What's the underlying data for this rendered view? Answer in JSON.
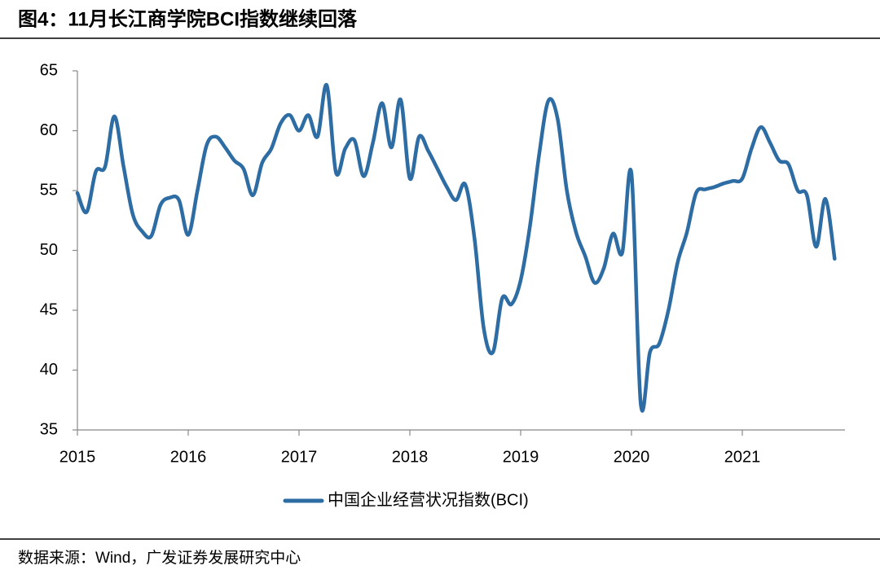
{
  "title": "图4：11月长江商学院BCI指数继续回落",
  "source": "数据来源：Wind，广发证券发展研究中心",
  "chart_data": {
    "type": "line",
    "categories": [
      "2015",
      null,
      null,
      null,
      null,
      null,
      null,
      null,
      null,
      null,
      null,
      null,
      "2016",
      null,
      null,
      null,
      null,
      null,
      null,
      null,
      null,
      null,
      null,
      null,
      "2017",
      null,
      null,
      null,
      null,
      null,
      null,
      null,
      null,
      null,
      null,
      null,
      "2018",
      null,
      null,
      null,
      null,
      null,
      null,
      null,
      null,
      null,
      null,
      null,
      "2019",
      null,
      null,
      null,
      null,
      null,
      null,
      null,
      null,
      null,
      null,
      null,
      "2020",
      null,
      null,
      null,
      null,
      null,
      null,
      null,
      null,
      null,
      null,
      null,
      "2021",
      null,
      null,
      null,
      null,
      null,
      null,
      null,
      null,
      null,
      null
    ],
    "series": [
      {
        "name": "中国企业经营状况指数(BCI)",
        "color": "#2e6da4",
        "values": [
          54.8,
          53.2,
          56.6,
          57,
          61.2,
          57,
          53,
          51.6,
          51.2,
          53.8,
          54.4,
          54.2,
          51.3,
          55,
          58.8,
          59.5,
          58.6,
          57.5,
          56.8,
          54.6,
          57.3,
          58.5,
          60.6,
          61.3,
          60,
          61.3,
          59.5,
          63.8,
          56.5,
          58.5,
          59.2,
          56.2,
          59,
          62.3,
          58.6,
          62.6,
          56,
          59.5,
          58.3,
          56.8,
          55.3,
          54.2,
          55.5,
          51,
          43.5,
          41.5,
          46,
          45.5,
          47.5,
          52,
          58,
          62.5,
          61,
          55,
          51.5,
          49.5,
          47.3,
          48.5,
          51.4,
          49.8,
          56.4,
          37.2,
          41.5,
          42.2,
          45,
          49,
          51.5,
          54.8,
          55.1,
          55.3,
          55.6,
          55.8,
          56,
          58.5,
          60.3,
          59,
          57.5,
          57.2,
          55,
          54.6,
          50.3,
          54.3,
          49.3
        ]
      }
    ],
    "ylim": [
      35,
      65
    ],
    "yticks": [
      35,
      40,
      45,
      50,
      55,
      60,
      65
    ],
    "grid": false,
    "legend": "bottom"
  }
}
